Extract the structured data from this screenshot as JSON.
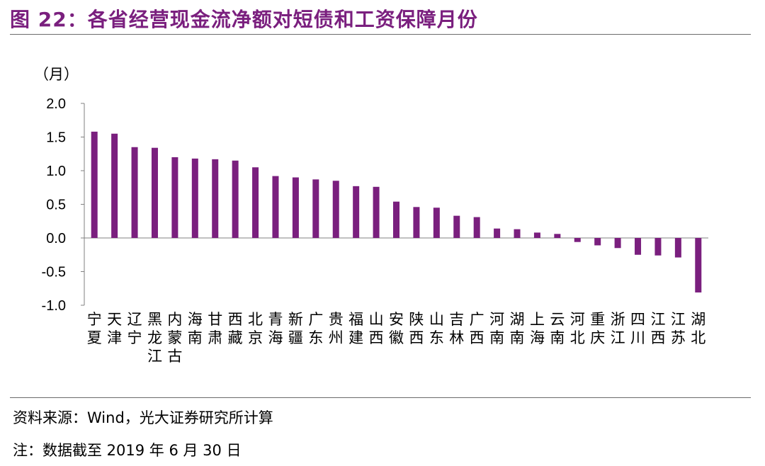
{
  "header": {
    "title": "图 22：各省经营现金流净额对短债和工资保障月份"
  },
  "chart_data": {
    "type": "bar",
    "unit_label": "（月）",
    "categories": [
      "宁夏",
      "天津",
      "辽宁",
      "黑龙江",
      "内蒙古",
      "海南",
      "甘肃",
      "西藏",
      "北京",
      "青海",
      "新疆",
      "广东",
      "贵州",
      "福建",
      "山西",
      "安徽",
      "陕西",
      "山东",
      "吉林",
      "广西",
      "河南",
      "湖南",
      "上海",
      "云南",
      "河北",
      "重庆",
      "浙江",
      "四川",
      "江西",
      "江苏",
      "湖北"
    ],
    "values": [
      1.58,
      1.55,
      1.35,
      1.34,
      1.2,
      1.18,
      1.17,
      1.15,
      1.05,
      0.92,
      0.9,
      0.87,
      0.85,
      0.77,
      0.76,
      0.54,
      0.46,
      0.45,
      0.33,
      0.31,
      0.14,
      0.13,
      0.08,
      0.06,
      -0.06,
      -0.11,
      -0.15,
      -0.25,
      -0.26,
      -0.29,
      -0.81
    ],
    "ylim": [
      -1.0,
      2.0
    ],
    "yticks": [
      "2.0",
      "1.5",
      "1.0",
      "0.5",
      "0.0",
      "-0.5",
      "-1.0"
    ],
    "bar_color": "#7a1f7e",
    "grid": false,
    "legend": "none"
  },
  "footer": {
    "source": "资料来源：Wind，光大证券研究所计算",
    "note": "注：数据截至 2019 年 6 月 30 日"
  }
}
